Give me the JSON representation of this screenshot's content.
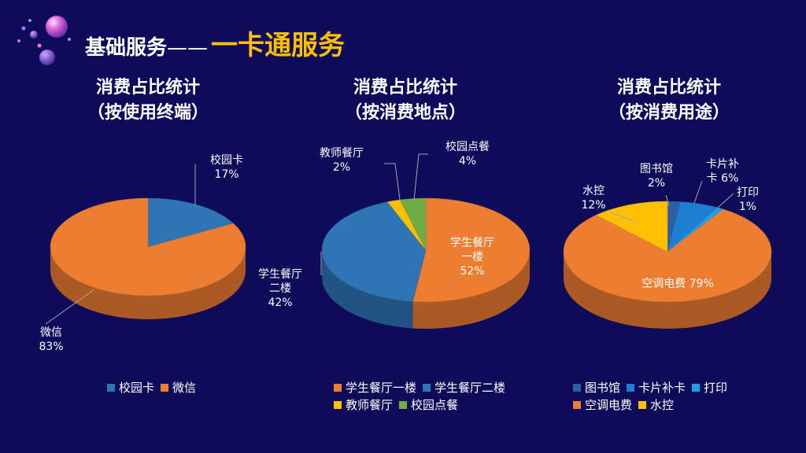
{
  "header": {
    "base": "基础服务",
    "dash": "——",
    "main": "一卡通服务"
  },
  "colors": {
    "orange": "#ed7d31",
    "blue_mid": "#2e75b6",
    "blue_dark": "#2e5ea8",
    "blue_light": "#1fa0e8",
    "yellow": "#ffc000",
    "green": "#70ad47",
    "bg": "#0d0b5a"
  },
  "chart_data": [
    {
      "type": "pie",
      "title": [
        "消费占比统计",
        "（按使用终端）"
      ],
      "slices": [
        {
          "name": "校园卡",
          "value": 17,
          "color": "#2e75b6",
          "label": [
            "校园卡",
            "17%"
          ]
        },
        {
          "name": "微信",
          "value": 83,
          "color": "#ed7d31",
          "label": [
            "微信",
            "83%"
          ]
        }
      ],
      "legend": [
        "校园卡",
        "微信"
      ]
    },
    {
      "type": "pie",
      "title": [
        "消费占比统计",
        "（按消费地点）"
      ],
      "slices": [
        {
          "name": "学生餐厅一楼",
          "value": 52,
          "color": "#ed7d31",
          "label": [
            "学生餐厅",
            "一楼",
            "52%"
          ]
        },
        {
          "name": "学生餐厅二楼",
          "value": 42,
          "color": "#2e75b6",
          "label": [
            "学生餐厅",
            "二楼",
            "42%"
          ]
        },
        {
          "name": "教师餐厅",
          "value": 2,
          "color": "#ffc000",
          "label": [
            "教师餐厅",
            "2%"
          ]
        },
        {
          "name": "校园点餐",
          "value": 4,
          "color": "#70ad47",
          "label": [
            "校园点餐",
            "4%"
          ]
        }
      ],
      "legend": [
        "学生餐厅一楼",
        "学生餐厅二楼",
        "教师餐厅",
        "校园点餐"
      ]
    },
    {
      "type": "pie",
      "title": [
        "消费占比统计",
        "（按消费用途）"
      ],
      "slices": [
        {
          "name": "图书馆",
          "value": 2,
          "color": "#2e5ea8",
          "label": [
            "图书馆",
            "2%"
          ]
        },
        {
          "name": "卡片补卡",
          "value": 6,
          "color": "#1c7fd0",
          "label": [
            "卡片补",
            "卡 6%"
          ]
        },
        {
          "name": "打印",
          "value": 1,
          "color": "#1fa0e8",
          "label": [
            "打印",
            "1%"
          ]
        },
        {
          "name": "空调电费",
          "value": 79,
          "color": "#ed7d31",
          "label": [
            "空调电费 79%"
          ]
        },
        {
          "name": "水控",
          "value": 12,
          "color": "#ffc000",
          "label": [
            "水控",
            "12%"
          ]
        }
      ],
      "legend": [
        "图书馆",
        "卡片补卡",
        "打印",
        "空调电费",
        "水控"
      ]
    }
  ]
}
